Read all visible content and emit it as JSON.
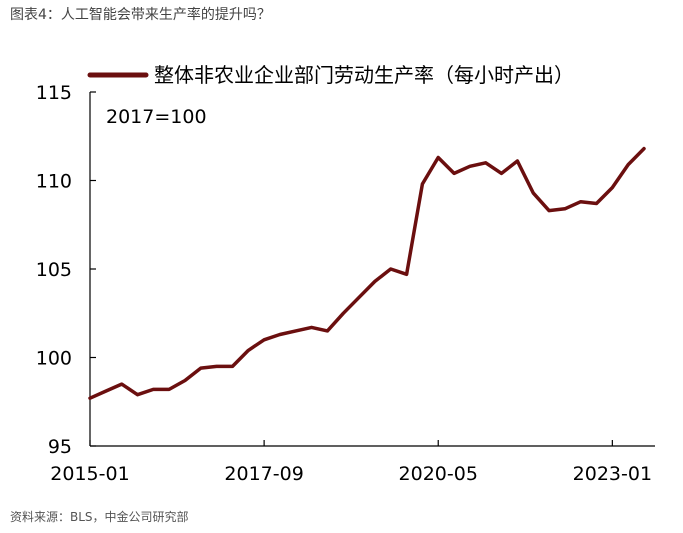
{
  "figure": {
    "caption": "图表4：人工智能会带来生产率的提升吗？",
    "source": "资料来源：BLS，中金公司研究部"
  },
  "chart_data": {
    "type": "line",
    "title": "",
    "xlabel": "",
    "ylabel": "",
    "annotation": "2017=100",
    "ylim": [
      95,
      115
    ],
    "yticks": [
      95,
      100,
      105,
      110,
      115
    ],
    "xtick_labels": [
      "2015-01",
      "2017-09",
      "2020-05",
      "2023-01"
    ],
    "xtick_index": [
      0,
      11,
      22,
      33
    ],
    "legend_position": "top",
    "grid": false,
    "series": [
      {
        "name": "整体非农业企业部门劳动生产率（每小时产出）",
        "color": "#6b0f0f",
        "x": [
          "2015-01",
          "2015-04",
          "2015-07",
          "2015-10",
          "2016-01",
          "2016-04",
          "2016-07",
          "2016-10",
          "2017-01",
          "2017-04",
          "2017-07",
          "2017-10",
          "2018-01",
          "2018-04",
          "2018-07",
          "2018-10",
          "2019-01",
          "2019-04",
          "2019-07",
          "2019-10",
          "2020-01",
          "2020-04",
          "2020-07",
          "2020-10",
          "2021-01",
          "2021-04",
          "2021-07",
          "2021-10",
          "2022-01",
          "2022-04",
          "2022-07",
          "2022-10",
          "2023-01",
          "2023-04",
          "2023-07",
          "2023-10"
        ],
        "values": [
          97.7,
          98.1,
          98.5,
          97.9,
          98.2,
          98.2,
          98.7,
          99.4,
          99.5,
          99.5,
          100.4,
          101.0,
          101.3,
          101.5,
          101.7,
          101.5,
          102.5,
          103.4,
          104.3,
          105.0,
          104.7,
          109.8,
          111.3,
          110.4,
          110.8,
          111.0,
          110.4,
          111.1,
          109.3,
          108.3,
          108.4,
          108.8,
          108.7,
          109.6,
          110.9,
          111.8
        ]
      }
    ]
  }
}
